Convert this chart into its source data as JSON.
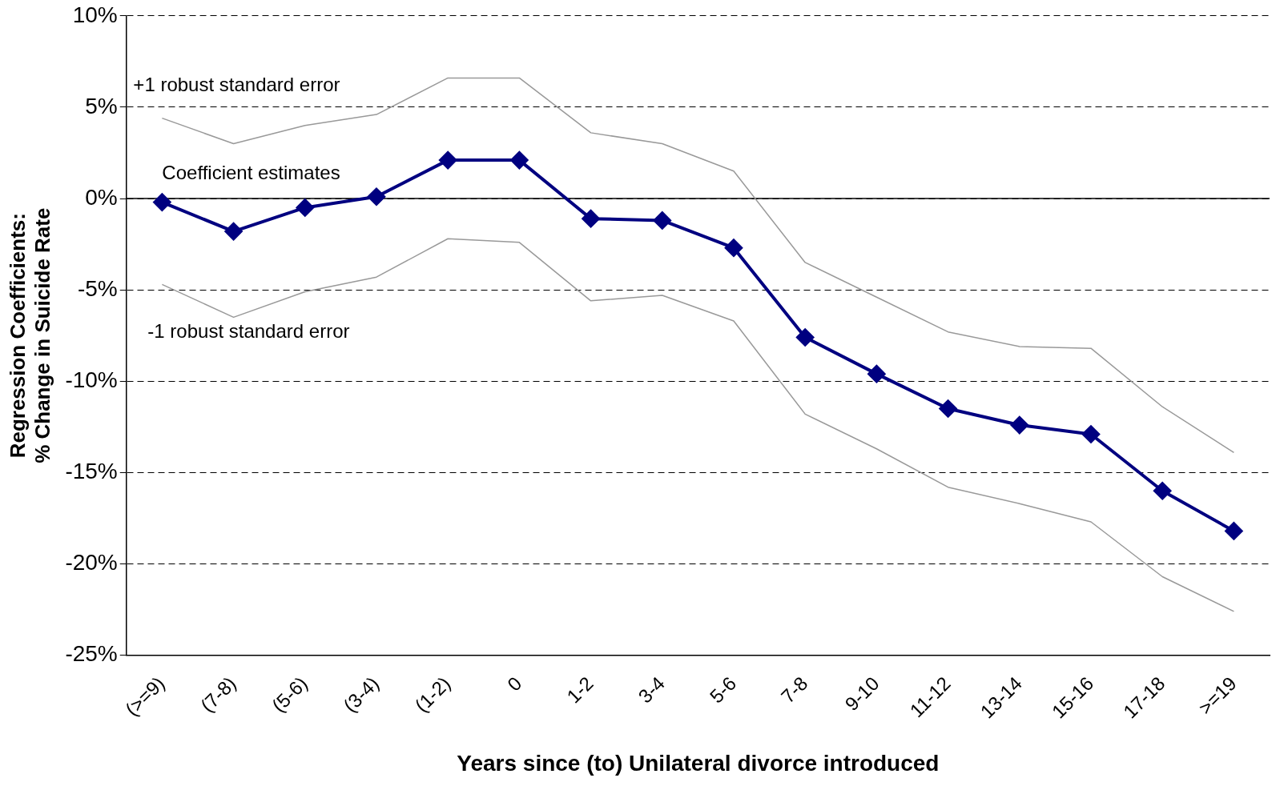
{
  "chart_data": {
    "type": "line",
    "xlabel": "Years since (to) Unilateral divorce introduced",
    "ylabel": "Regression Coefficients:\n% Change in Suicide Rate",
    "categories": [
      "(>=9)",
      "(7-8)",
      "(5-6)",
      "(3-4)",
      "(1-2)",
      "0",
      "1-2",
      "3-4",
      "5-6",
      "7-8",
      "9-10",
      "11-12",
      "13-14",
      "15-16",
      "17-18",
      ">=19"
    ],
    "series": [
      {
        "name": "+1 robust standard error",
        "color": "#999999",
        "marker": "none",
        "values": [
          4.4,
          3.0,
          4.0,
          4.6,
          6.6,
          6.6,
          3.6,
          3.0,
          1.5,
          -3.5,
          -5.4,
          -7.3,
          -8.1,
          -8.2,
          -11.4,
          -13.9
        ]
      },
      {
        "name": "Coefficient estimates",
        "color": "#000080",
        "marker": "diamond",
        "values": [
          -0.2,
          -1.8,
          -0.5,
          0.1,
          2.1,
          2.1,
          -1.1,
          -1.2,
          -2.7,
          -7.6,
          -9.6,
          -11.5,
          -12.4,
          -12.9,
          -16.0,
          -18.2
        ]
      },
      {
        "name": "-1 robust standard error",
        "color": "#999999",
        "marker": "none",
        "values": [
          -4.7,
          -6.5,
          -5.1,
          -4.3,
          -2.2,
          -2.4,
          -5.6,
          -5.3,
          -6.7,
          -11.8,
          -13.7,
          -15.8,
          -16.7,
          -17.7,
          -20.7,
          -22.6
        ]
      }
    ],
    "ylim": [
      -25,
      10
    ],
    "yticks": [
      {
        "value": -25,
        "label": "-25%"
      },
      {
        "value": -20,
        "label": "-20%"
      },
      {
        "value": -15,
        "label": "-15%"
      },
      {
        "value": -10,
        "label": "-10%"
      },
      {
        "value": -5,
        "label": "-5%"
      },
      {
        "value": 0,
        "label": "0%"
      },
      {
        "value": 5,
        "label": "5%"
      },
      {
        "value": 10,
        "label": "10%"
      }
    ],
    "ref_lines": [
      {
        "axis": "y",
        "value": 0,
        "color": "#000000",
        "line_style": "solid"
      }
    ],
    "grid": "y",
    "line_style": "solid",
    "legend": false
  }
}
